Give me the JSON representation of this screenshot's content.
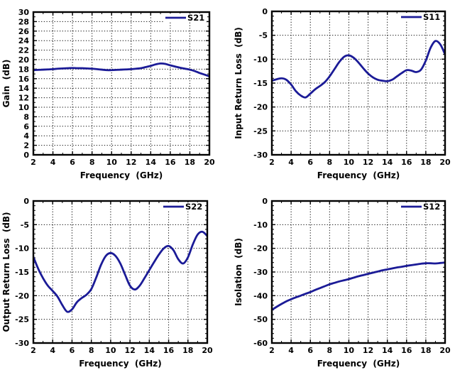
{
  "page": {
    "background": "#ffffff",
    "description": "2x2 grid of S-parameter measurement plots"
  },
  "colors": {
    "line": "#1b1b97",
    "frame": "#000000",
    "grid": "#000000",
    "text": "#000000"
  },
  "chart_data": [
    {
      "type": "line",
      "legend": "S21",
      "xlabel": "Frequency  (GHz)",
      "ylabel": "Gain  (dB)",
      "xlim": [
        2,
        20
      ],
      "ylim": [
        0,
        30
      ],
      "xticks": [
        2,
        4,
        6,
        8,
        10,
        12,
        14,
        16,
        18,
        20
      ],
      "yticks": [
        0,
        2,
        4,
        6,
        8,
        10,
        12,
        14,
        16,
        18,
        20,
        22,
        24,
        26,
        28,
        30
      ],
      "xminor_step": 1,
      "yminor_step": 1,
      "grid": "dotted",
      "legend_position": "top-right",
      "x": [
        2,
        2.5,
        3,
        3.5,
        4,
        4.5,
        5,
        5.5,
        6,
        6.5,
        7,
        7.5,
        8,
        8.5,
        9,
        9.5,
        10,
        10.5,
        11,
        11.5,
        12,
        12.5,
        13,
        13.5,
        14,
        14.5,
        15,
        15.5,
        16,
        16.5,
        17,
        17.5,
        18,
        18.5,
        19,
        19.5,
        20
      ],
      "y": [
        17.8,
        17.85,
        17.9,
        17.95,
        18.0,
        18.1,
        18.15,
        18.2,
        18.25,
        18.2,
        18.2,
        18.15,
        18.1,
        18.0,
        17.9,
        17.8,
        17.8,
        17.85,
        17.9,
        17.95,
        18.0,
        18.1,
        18.2,
        18.45,
        18.7,
        19.0,
        19.2,
        19.1,
        18.8,
        18.55,
        18.3,
        18.1,
        17.9,
        17.6,
        17.2,
        16.85,
        16.5
      ]
    },
    {
      "type": "line",
      "legend": "S11",
      "xlabel": "Frequency  (GHz)",
      "ylabel": "Input Return Loss  (dB)",
      "xlim": [
        2,
        20
      ],
      "ylim": [
        -30,
        0
      ],
      "xticks": [
        2,
        4,
        6,
        8,
        10,
        12,
        14,
        16,
        18,
        20
      ],
      "yticks": [
        0,
        -5,
        -10,
        -15,
        -20,
        -25,
        -30
      ],
      "xminor_step": 1,
      "yminor_step": 1,
      "grid": "dotted",
      "legend_position": "top-right",
      "x": [
        2,
        2.5,
        3,
        3.5,
        4,
        4.5,
        5,
        5.5,
        6,
        6.5,
        7,
        7.5,
        8,
        8.5,
        9,
        9.5,
        10,
        10.5,
        11,
        11.5,
        12,
        12.5,
        13,
        13.5,
        14,
        14.5,
        15,
        15.5,
        16,
        16.5,
        17,
        17.5,
        18,
        18.5,
        19,
        19.5,
        20
      ],
      "y": [
        -14.5,
        -14.2,
        -14.0,
        -14.3,
        -15.3,
        -16.7,
        -17.6,
        -18.0,
        -17.2,
        -16.3,
        -15.6,
        -14.8,
        -13.6,
        -12.1,
        -10.6,
        -9.5,
        -9.2,
        -9.7,
        -10.7,
        -11.9,
        -13.0,
        -13.8,
        -14.3,
        -14.5,
        -14.6,
        -14.3,
        -13.6,
        -12.9,
        -12.3,
        -12.4,
        -12.7,
        -12.2,
        -10.3,
        -7.6,
        -6.2,
        -6.9,
        -9.0
      ]
    },
    {
      "type": "line",
      "legend": "S22",
      "xlabel": "Frequency  (GHz)",
      "ylabel": "Output Return Loss  (dB)",
      "xlim": [
        2,
        20
      ],
      "ylim": [
        -30,
        0
      ],
      "xticks": [
        2,
        4,
        6,
        8,
        10,
        12,
        14,
        16,
        18,
        20
      ],
      "yticks": [
        0,
        -5,
        -10,
        -15,
        -20,
        -25,
        -30
      ],
      "xminor_step": 1,
      "yminor_step": 1,
      "grid": "dotted",
      "legend_position": "top-right",
      "x": [
        2,
        2.5,
        3,
        3.5,
        4,
        4.5,
        5,
        5.5,
        6,
        6.5,
        7,
        7.5,
        8,
        8.5,
        9,
        9.5,
        10,
        10.5,
        11,
        11.5,
        12,
        12.5,
        13,
        13.5,
        14,
        14.5,
        15,
        15.5,
        16,
        16.5,
        17,
        17.5,
        18,
        18.5,
        19,
        19.5,
        20
      ],
      "y": [
        -11.8,
        -14.3,
        -16.3,
        -17.9,
        -19.0,
        -20.2,
        -22.0,
        -23.4,
        -22.9,
        -21.4,
        -20.5,
        -19.8,
        -18.6,
        -16.2,
        -13.5,
        -11.6,
        -11.0,
        -11.6,
        -13.2,
        -15.6,
        -17.9,
        -18.7,
        -17.9,
        -16.3,
        -14.6,
        -12.9,
        -11.3,
        -10.0,
        -9.5,
        -10.4,
        -12.3,
        -13.2,
        -11.9,
        -9.2,
        -7.1,
        -6.5,
        -7.4
      ]
    },
    {
      "type": "line",
      "legend": "S12",
      "xlabel": "Frequency  (GHz)",
      "ylabel": "Isolation  (dB)",
      "xlim": [
        2,
        20
      ],
      "ylim": [
        -60,
        0
      ],
      "xticks": [
        2,
        4,
        6,
        8,
        10,
        12,
        14,
        16,
        18,
        20
      ],
      "yticks": [
        0,
        -10,
        -20,
        -30,
        -40,
        -50,
        -60
      ],
      "xminor_step": 1,
      "yminor_step": 2,
      "grid": "dotted",
      "legend_position": "top-right",
      "x": [
        2,
        2.5,
        3,
        3.5,
        4,
        4.5,
        5,
        5.5,
        6,
        6.5,
        7,
        7.5,
        8,
        8.5,
        9,
        9.5,
        10,
        10.5,
        11,
        11.5,
        12,
        12.5,
        13,
        13.5,
        14,
        14.5,
        15,
        15.5,
        16,
        16.5,
        17,
        17.5,
        18,
        18.5,
        19,
        19.5,
        20
      ],
      "y": [
        -46.0,
        -44.7,
        -43.5,
        -42.4,
        -41.5,
        -40.7,
        -40.0,
        -39.2,
        -38.5,
        -37.6,
        -36.8,
        -36.0,
        -35.2,
        -34.6,
        -34.0,
        -33.5,
        -33.0,
        -32.4,
        -31.8,
        -31.3,
        -30.8,
        -30.3,
        -29.8,
        -29.3,
        -28.9,
        -28.5,
        -28.1,
        -27.8,
        -27.4,
        -27.1,
        -26.8,
        -26.5,
        -26.3,
        -26.3,
        -26.4,
        -26.2,
        -26.0
      ]
    }
  ]
}
